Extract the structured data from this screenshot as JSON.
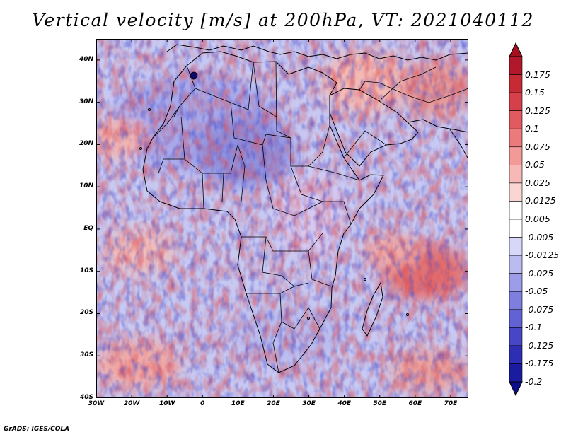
{
  "title": "Vertical velocity [m/s] at 200hPa, VT: 2021040112",
  "footer": "GrADS: IGES/COLA",
  "map": {
    "lon_range": [
      -30,
      75
    ],
    "lat_range": [
      -40,
      45
    ],
    "lat_labels": [
      "40N",
      "30N",
      "20N",
      "10N",
      "EQ",
      "10S",
      "20S",
      "30S",
      "40S"
    ],
    "lon_labels": [
      "30W",
      "20W",
      "10W",
      "0",
      "10E",
      "20E",
      "30E",
      "40E",
      "50E",
      "60E",
      "70E"
    ]
  },
  "colorbar": {
    "labels": [
      "0.175",
      "0.15",
      "0.125",
      "0.1",
      "0.075",
      "0.05",
      "0.025",
      "0.0125",
      "0.005",
      "-0.005",
      "-0.0125",
      "-0.025",
      "-0.05",
      "-0.075",
      "-0.1",
      "-0.125",
      "-0.175",
      "-0.2"
    ],
    "colors": [
      "#b2182b",
      "#c62a35",
      "#d6404a",
      "#e15a60",
      "#ea7a7c",
      "#f19a98",
      "#f6b9b6",
      "#fad6d3",
      "#ffffff",
      "#ffffff",
      "#d7d7f7",
      "#bbbbf0",
      "#9c9ce8",
      "#7e7edf",
      "#6262d4",
      "#4646c6",
      "#2e2eb4",
      "#1b1ba0"
    ],
    "top_arrow_color": "#a50f20",
    "bottom_arrow_color": "#0d0d8c"
  }
}
